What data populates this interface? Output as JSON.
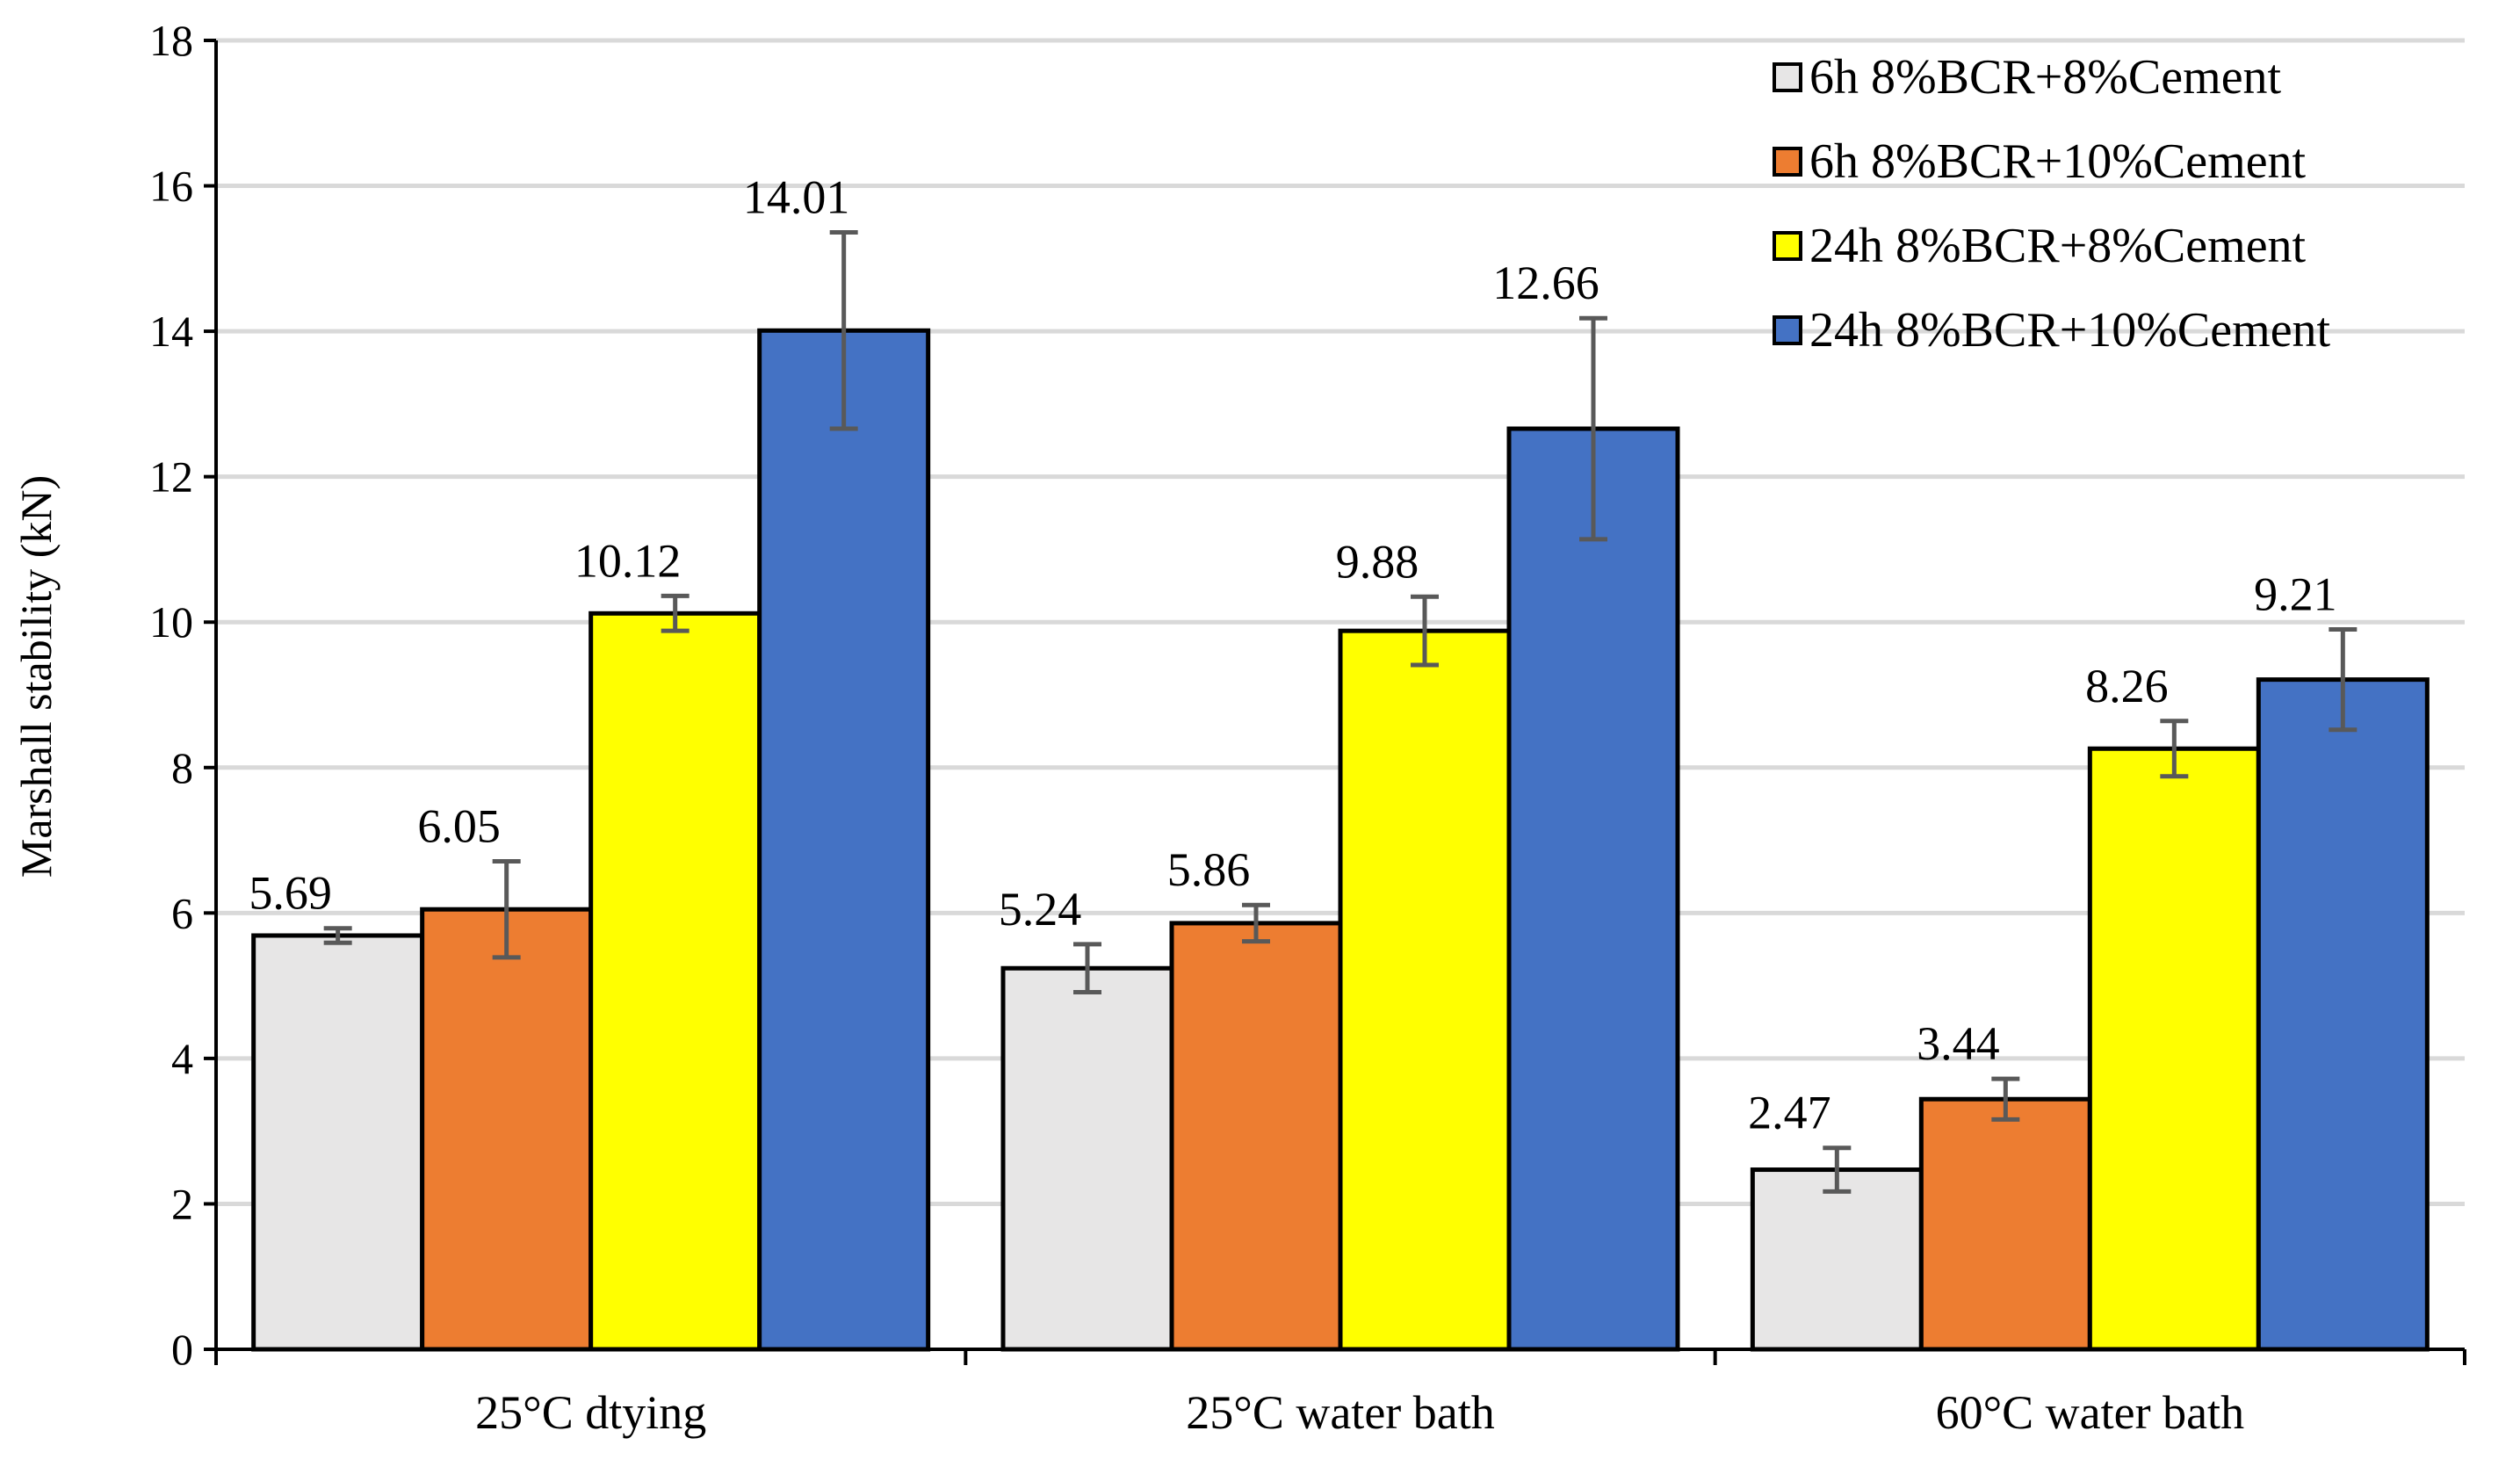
{
  "chart_data": {
    "type": "bar",
    "title": "",
    "xlabel": "",
    "ylabel": "Marshall stability (kN)",
    "ylim": [
      0,
      18
    ],
    "yticks": [
      0,
      2,
      4,
      6,
      8,
      10,
      12,
      14,
      16,
      18
    ],
    "grid": true,
    "legend_position": "top-right",
    "categories": [
      "25°C dtying",
      "25°C water bath",
      "60°C water bath"
    ],
    "series": [
      {
        "name": "6h 8%BCR+8%Cement",
        "color": "#E7E6E6",
        "values": [
          5.69,
          5.24,
          2.47
        ],
        "errors": [
          0.1,
          0.33,
          0.3
        ],
        "labels": [
          "5.69",
          "5.24",
          "2.47"
        ]
      },
      {
        "name": "6h 8%BCR+10%Cement",
        "color": "#ED7D31",
        "values": [
          6.05,
          5.86,
          3.44
        ],
        "errors": [
          0.66,
          0.25,
          0.28
        ],
        "labels": [
          "6.05",
          "5.86",
          "3.44"
        ]
      },
      {
        "name": "24h 8%BCR+8%Cement",
        "color": "#FFFF00",
        "values": [
          10.12,
          9.88,
          8.26
        ],
        "errors": [
          0.24,
          0.47,
          0.38
        ],
        "labels": [
          "10.12",
          "9.88",
          "8.26"
        ]
      },
      {
        "name": "24h 8%BCR+10%Cement",
        "color": "#4472C4",
        "values": [
          14.01,
          12.66,
          9.21
        ],
        "errors": [
          1.35,
          1.52,
          0.69
        ],
        "labels": [
          "14.01",
          "12.66",
          "9.21"
        ]
      }
    ]
  }
}
